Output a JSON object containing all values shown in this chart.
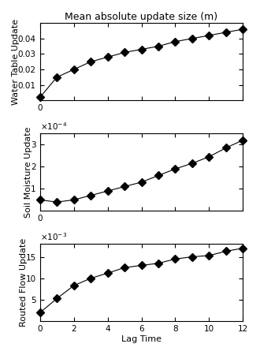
{
  "title": "Mean absolute update size (m)",
  "xlabel": "Lag Time",
  "x": [
    0,
    1,
    2,
    3,
    4,
    5,
    6,
    7,
    8,
    9,
    10,
    11,
    12
  ],
  "wt_values": [
    0.002,
    0.015,
    0.02,
    0.025,
    0.028,
    0.031,
    0.033,
    0.035,
    0.038,
    0.04,
    0.042,
    0.044,
    0.046
  ],
  "sm_values": [
    5e-05,
    4e-05,
    5e-05,
    7e-05,
    9e-05,
    0.00011,
    0.00013,
    0.00016,
    0.00019,
    0.000215,
    0.000245,
    0.000285,
    0.00032
  ],
  "rf_values": [
    0.002,
    0.0053,
    0.0083,
    0.01,
    0.0112,
    0.0125,
    0.013,
    0.0135,
    0.0145,
    0.015,
    0.0153,
    0.0163,
    0.017
  ],
  "ylabel1": "Water Table Update",
  "ylabel2": "Soil Moisture Update",
  "ylabel3": "Routed Flow Update",
  "wt_ylim": [
    0,
    0.05
  ],
  "sm_ylim": [
    0,
    0.00035
  ],
  "rf_ylim": [
    0,
    0.018
  ],
  "line_color": "#000000",
  "marker": "D",
  "markersize": 5,
  "linewidth": 0.8,
  "tick_fontsize": 7.5,
  "label_fontsize": 8,
  "title_fontsize": 9,
  "bg_color": "#ffffff",
  "wt_yticks": [
    0.01,
    0.02,
    0.03,
    0.04
  ],
  "sm_yticks": [
    0.0001,
    0.0002,
    0.0003
  ],
  "rf_yticks": [
    0.005,
    0.01,
    0.015
  ],
  "xticks": [
    0,
    2,
    4,
    6,
    8,
    10,
    12
  ]
}
